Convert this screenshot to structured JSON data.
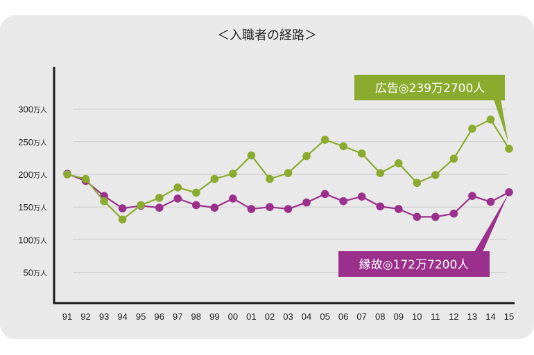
{
  "chart_data": {
    "type": "line",
    "title": "＜入職者の経路＞",
    "xlabel": "",
    "ylabel": "",
    "categories": [
      "91",
      "92",
      "93",
      "94",
      "95",
      "96",
      "97",
      "98",
      "99",
      "00",
      "01",
      "02",
      "03",
      "04",
      "05",
      "06",
      "07",
      "08",
      "09",
      "10",
      "11",
      "12",
      "13",
      "14",
      "15"
    ],
    "y_ticks": [
      {
        "value": 50,
        "label": "50",
        "unit": "万人"
      },
      {
        "value": 100,
        "label": "100",
        "unit": "万人"
      },
      {
        "value": 150,
        "label": "150",
        "unit": "万人"
      },
      {
        "value": 200,
        "label": "200",
        "unit": "万人"
      },
      {
        "value": 250,
        "label": "250",
        "unit": "万人"
      },
      {
        "value": 300,
        "label": "300",
        "unit": "万人"
      }
    ],
    "ylim": [
      0,
      360
    ],
    "grid": true,
    "series": [
      {
        "name": "広告",
        "color": "#8aab2e",
        "values": [
          200,
          193,
          159,
          131,
          153,
          164,
          180,
          172,
          193,
          201,
          229,
          193,
          202,
          228,
          253,
          243,
          232,
          202,
          217,
          187,
          199,
          224,
          270,
          284,
          239.27
        ]
      },
      {
        "name": "縁故",
        "color": "#9b2f8c",
        "values": [
          201,
          190,
          167,
          148,
          152,
          149,
          163,
          153,
          149,
          163,
          147,
          150,
          147,
          157,
          170,
          159,
          166,
          151,
          147,
          135,
          135,
          140,
          167,
          158,
          172.72
        ]
      }
    ],
    "annotations": [
      {
        "series": "広告",
        "text": "広告◎239万2700人"
      },
      {
        "series": "縁故",
        "text": "縁故◎172万7200人"
      }
    ]
  }
}
